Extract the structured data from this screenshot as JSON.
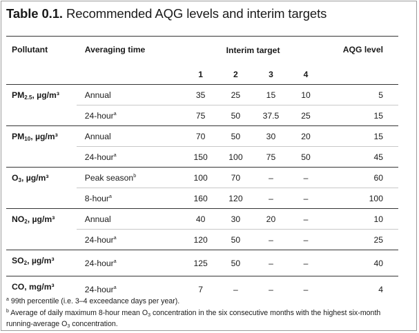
{
  "title": {
    "label": "Table 0.1.",
    "text": "Recommended AQG levels and interim targets"
  },
  "header": {
    "pollutant": "Pollutant",
    "averaging_time": "Averaging time",
    "interim_target": "Interim target",
    "aqg_level": "AQG level",
    "interim_numbers": [
      "1",
      "2",
      "3",
      "4"
    ]
  },
  "rows": [
    {
      "pollutant": "PM",
      "sub": "2.5",
      "unit": ", µg/m³",
      "avg": "Annual",
      "sup": "",
      "it": [
        "35",
        "25",
        "15",
        "10"
      ],
      "aqg": "5"
    },
    {
      "avg": "24-hour",
      "sup": "a",
      "it": [
        "75",
        "50",
        "37.5",
        "25"
      ],
      "aqg": "15"
    },
    {
      "pollutant": "PM",
      "sub": "10",
      "unit": ", µg/m³",
      "avg": "Annual",
      "sup": "",
      "it": [
        "70",
        "50",
        "30",
        "20"
      ],
      "aqg": "15"
    },
    {
      "avg": "24-hour",
      "sup": "a",
      "it": [
        "150",
        "100",
        "75",
        "50"
      ],
      "aqg": "45"
    },
    {
      "pollutant": "O",
      "sub": "3",
      "unit": ", µg/m³",
      "avg": "Peak season",
      "sup": "b",
      "it": [
        "100",
        "70",
        "–",
        "–"
      ],
      "aqg": "60"
    },
    {
      "avg": "8-hour",
      "sup": "a",
      "it": [
        "160",
        "120",
        "–",
        "–"
      ],
      "aqg": "100"
    },
    {
      "pollutant": "NO",
      "sub": "2",
      "unit": ", µg/m³",
      "avg": "Annual",
      "sup": "",
      "it": [
        "40",
        "30",
        "20",
        "–"
      ],
      "aqg": "10"
    },
    {
      "avg": "24-hour",
      "sup": "a",
      "it": [
        "120",
        "50",
        "–",
        "–"
      ],
      "aqg": "25"
    },
    {
      "pollutant": "SO",
      "sub": "2",
      "unit": ", µg/m³",
      "avg": "24-hour",
      "sup": "a",
      "it": [
        "125",
        "50",
        "–",
        "–"
      ],
      "aqg": "40"
    },
    {
      "pollutant": "CO, mg/m³",
      "sub": "",
      "unit": "",
      "avg": "24-hour",
      "sup": "a",
      "it": [
        "7",
        "–",
        "–",
        "–"
      ],
      "aqg": "4"
    }
  ],
  "notes": {
    "a_mark": "a",
    "a_text": "99th percentile (i.e. 3–4 exceedance days per year).",
    "b_mark": "b",
    "b_text_1": "Average of daily maximum 8-hour mean O",
    "b_sub": "3",
    "b_text_2": " concentration in the six consecutive months with the highest six-month running-average O",
    "b_sub_2": "3",
    "b_text_3": " concentration."
  }
}
